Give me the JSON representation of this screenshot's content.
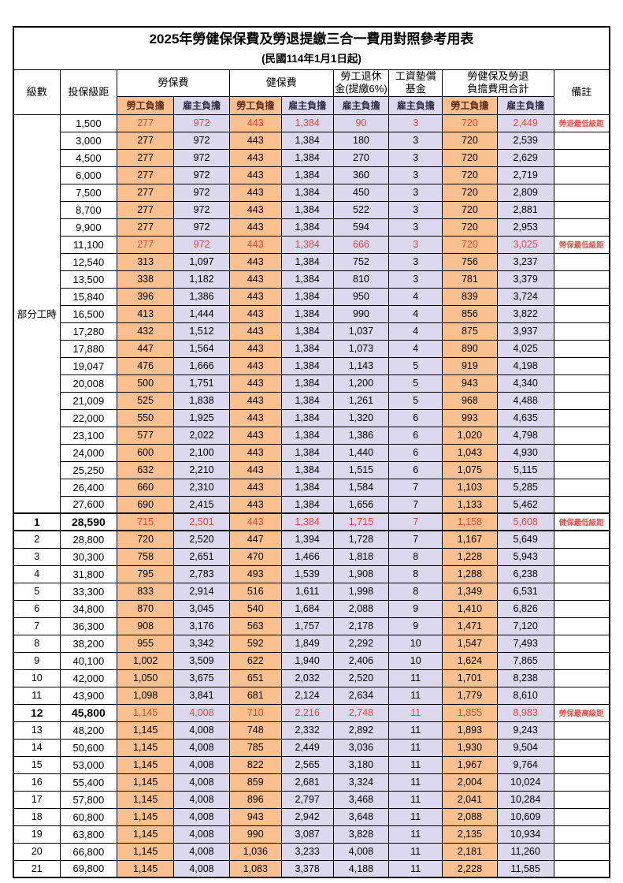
{
  "title": "2025年勞健保保費及勞退提繳三合一費用對照參考用表",
  "subtitle": "(民國114年1月1日起)",
  "header": {
    "level": "級數",
    "bracket": "投保級距",
    "labor_ins": "勞保費",
    "health_ins": "健保費",
    "pension_line1": "勞工退休",
    "pension_line2": "金(提繳6%)",
    "wage_fund_line1": "工資墊償",
    "wage_fund_line2": "基金",
    "total_line1": "勞健保及勞退",
    "total_line2": "負擔費用合計",
    "remark": "備註",
    "employee": "勞工負擔",
    "employer": "雇主負擔"
  },
  "part_time_label": "部分工時",
  "colors": {
    "employee_bg": "#FBC08F",
    "employer_bg": "#DCD8EE",
    "highlight_red": "#E8463C",
    "remark_red": "#F05048",
    "employee_header_text": "#5D2A18",
    "employer_header_text": "#2E2B45"
  },
  "rows": [
    {
      "bracket": "1,500",
      "values": [
        "277",
        "972",
        "443",
        "1,384",
        "90",
        "3",
        "720",
        "2,449"
      ],
      "remark": "勞退最低級距",
      "highlight": true
    },
    {
      "bracket": "3,000",
      "values": [
        "277",
        "972",
        "443",
        "1,384",
        "180",
        "3",
        "720",
        "2,539"
      ]
    },
    {
      "bracket": "4,500",
      "values": [
        "277",
        "972",
        "443",
        "1,384",
        "270",
        "3",
        "720",
        "2,629"
      ]
    },
    {
      "bracket": "6,000",
      "values": [
        "277",
        "972",
        "443",
        "1,384",
        "360",
        "3",
        "720",
        "2,719"
      ]
    },
    {
      "bracket": "7,500",
      "values": [
        "277",
        "972",
        "443",
        "1,384",
        "450",
        "3",
        "720",
        "2,809"
      ]
    },
    {
      "bracket": "8,700",
      "values": [
        "277",
        "972",
        "443",
        "1,384",
        "522",
        "3",
        "720",
        "2,881"
      ]
    },
    {
      "bracket": "9,900",
      "values": [
        "277",
        "972",
        "443",
        "1,384",
        "594",
        "3",
        "720",
        "2,953"
      ]
    },
    {
      "bracket": "11,100",
      "values": [
        "277",
        "972",
        "443",
        "1,384",
        "666",
        "3",
        "720",
        "3,025"
      ],
      "remark": "勞保最低級距",
      "highlight": true
    },
    {
      "bracket": "12,540",
      "values": [
        "313",
        "1,097",
        "443",
        "1,384",
        "752",
        "3",
        "756",
        "3,237"
      ]
    },
    {
      "bracket": "13,500",
      "values": [
        "338",
        "1,182",
        "443",
        "1,384",
        "810",
        "3",
        "781",
        "3,379"
      ]
    },
    {
      "bracket": "15,840",
      "values": [
        "396",
        "1,386",
        "443",
        "1,384",
        "950",
        "4",
        "839",
        "3,724"
      ]
    },
    {
      "bracket": "16,500",
      "values": [
        "413",
        "1,444",
        "443",
        "1,384",
        "990",
        "4",
        "856",
        "3,822"
      ]
    },
    {
      "bracket": "17,280",
      "values": [
        "432",
        "1,512",
        "443",
        "1,384",
        "1,037",
        "4",
        "875",
        "3,937"
      ]
    },
    {
      "bracket": "17,880",
      "values": [
        "447",
        "1,564",
        "443",
        "1,384",
        "1,073",
        "4",
        "890",
        "4,025"
      ]
    },
    {
      "bracket": "19,047",
      "values": [
        "476",
        "1,666",
        "443",
        "1,384",
        "1,143",
        "5",
        "919",
        "4,198"
      ]
    },
    {
      "bracket": "20,008",
      "values": [
        "500",
        "1,751",
        "443",
        "1,384",
        "1,200",
        "5",
        "943",
        "4,340"
      ]
    },
    {
      "bracket": "21,009",
      "values": [
        "525",
        "1,838",
        "443",
        "1,384",
        "1,261",
        "5",
        "968",
        "4,488"
      ]
    },
    {
      "bracket": "22,000",
      "values": [
        "550",
        "1,925",
        "443",
        "1,384",
        "1,320",
        "6",
        "993",
        "4,635"
      ]
    },
    {
      "bracket": "23,100",
      "values": [
        "577",
        "2,022",
        "443",
        "1,384",
        "1,386",
        "6",
        "1,020",
        "4,798"
      ]
    },
    {
      "bracket": "24,000",
      "values": [
        "600",
        "2,100",
        "443",
        "1,384",
        "1,440",
        "6",
        "1,043",
        "4,930"
      ]
    },
    {
      "bracket": "25,250",
      "values": [
        "632",
        "2,210",
        "443",
        "1,384",
        "1,515",
        "6",
        "1,075",
        "5,115"
      ]
    },
    {
      "bracket": "26,400",
      "values": [
        "660",
        "2,310",
        "443",
        "1,384",
        "1,584",
        "7",
        "1,103",
        "5,285"
      ]
    },
    {
      "bracket": "27,600",
      "values": [
        "690",
        "2,415",
        "443",
        "1,384",
        "1,656",
        "7",
        "1,133",
        "5,462"
      ]
    },
    {
      "level": "1",
      "bracket": "28,590",
      "values": [
        "715",
        "2,501",
        "443",
        "1,384",
        "1,715",
        "7",
        "1,158",
        "5,608"
      ],
      "remark": "健保最低級距",
      "highlight": true,
      "bold": true,
      "thick_top": true,
      "thick_bottom": true
    },
    {
      "level": "2",
      "bracket": "28,800",
      "values": [
        "720",
        "2,520",
        "447",
        "1,394",
        "1,728",
        "7",
        "1,167",
        "5,649"
      ]
    },
    {
      "level": "3",
      "bracket": "30,300",
      "values": [
        "758",
        "2,651",
        "470",
        "1,466",
        "1,818",
        "8",
        "1,228",
        "5,943"
      ]
    },
    {
      "level": "4",
      "bracket": "31,800",
      "values": [
        "795",
        "2,783",
        "493",
        "1,539",
        "1,908",
        "8",
        "1,288",
        "6,238"
      ]
    },
    {
      "level": "5",
      "bracket": "33,300",
      "values": [
        "833",
        "2,914",
        "516",
        "1,611",
        "1,998",
        "8",
        "1,349",
        "6,531"
      ]
    },
    {
      "level": "6",
      "bracket": "34,800",
      "values": [
        "870",
        "3,045",
        "540",
        "1,684",
        "2,088",
        "9",
        "1,410",
        "6,826"
      ]
    },
    {
      "level": "7",
      "bracket": "36,300",
      "values": [
        "908",
        "3,176",
        "563",
        "1,757",
        "2,178",
        "9",
        "1,471",
        "7,120"
      ]
    },
    {
      "level": "8",
      "bracket": "38,200",
      "values": [
        "955",
        "3,342",
        "592",
        "1,849",
        "2,292",
        "10",
        "1,547",
        "7,493"
      ]
    },
    {
      "level": "9",
      "bracket": "40,100",
      "values": [
        "1,002",
        "3,509",
        "622",
        "1,940",
        "2,406",
        "10",
        "1,624",
        "7,865"
      ]
    },
    {
      "level": "10",
      "bracket": "42,000",
      "values": [
        "1,050",
        "3,675",
        "651",
        "2,032",
        "2,520",
        "11",
        "1,701",
        "8,238"
      ]
    },
    {
      "level": "11",
      "bracket": "43,900",
      "values": [
        "1,098",
        "3,841",
        "681",
        "2,124",
        "2,634",
        "11",
        "1,779",
        "8,610"
      ]
    },
    {
      "level": "12",
      "bracket": "45,800",
      "values": [
        "1,145",
        "4,008",
        "710",
        "2,216",
        "2,748",
        "11",
        "1,855",
        "8,983"
      ],
      "remark": "勞保最高級距",
      "highlight": true,
      "bold": true
    },
    {
      "level": "13",
      "bracket": "48,200",
      "values": [
        "1,145",
        "4,008",
        "748",
        "2,332",
        "2,892",
        "11",
        "1,893",
        "9,243"
      ]
    },
    {
      "level": "14",
      "bracket": "50,600",
      "values": [
        "1,145",
        "4,008",
        "785",
        "2,449",
        "3,036",
        "11",
        "1,930",
        "9,504"
      ]
    },
    {
      "level": "15",
      "bracket": "53,000",
      "values": [
        "1,145",
        "4,008",
        "822",
        "2,565",
        "3,180",
        "11",
        "1,967",
        "9,764"
      ]
    },
    {
      "level": "16",
      "bracket": "55,400",
      "values": [
        "1,145",
        "4,008",
        "859",
        "2,681",
        "3,324",
        "11",
        "2,004",
        "10,024"
      ]
    },
    {
      "level": "17",
      "bracket": "57,800",
      "values": [
        "1,145",
        "4,008",
        "896",
        "2,797",
        "3,468",
        "11",
        "2,041",
        "10,284"
      ]
    },
    {
      "level": "18",
      "bracket": "60,800",
      "values": [
        "1,145",
        "4,008",
        "943",
        "2,942",
        "3,648",
        "11",
        "2,088",
        "10,609"
      ]
    },
    {
      "level": "19",
      "bracket": "63,800",
      "values": [
        "1,145",
        "4,008",
        "990",
        "3,087",
        "3,828",
        "11",
        "2,135",
        "10,934"
      ]
    },
    {
      "level": "20",
      "bracket": "66,800",
      "values": [
        "1,145",
        "4,008",
        "1,036",
        "3,233",
        "4,008",
        "11",
        "2,181",
        "11,260"
      ]
    },
    {
      "level": "21",
      "bracket": "69,800",
      "values": [
        "1,145",
        "4,008",
        "1,083",
        "3,378",
        "4,188",
        "11",
        "2,228",
        "11,585"
      ]
    }
  ]
}
